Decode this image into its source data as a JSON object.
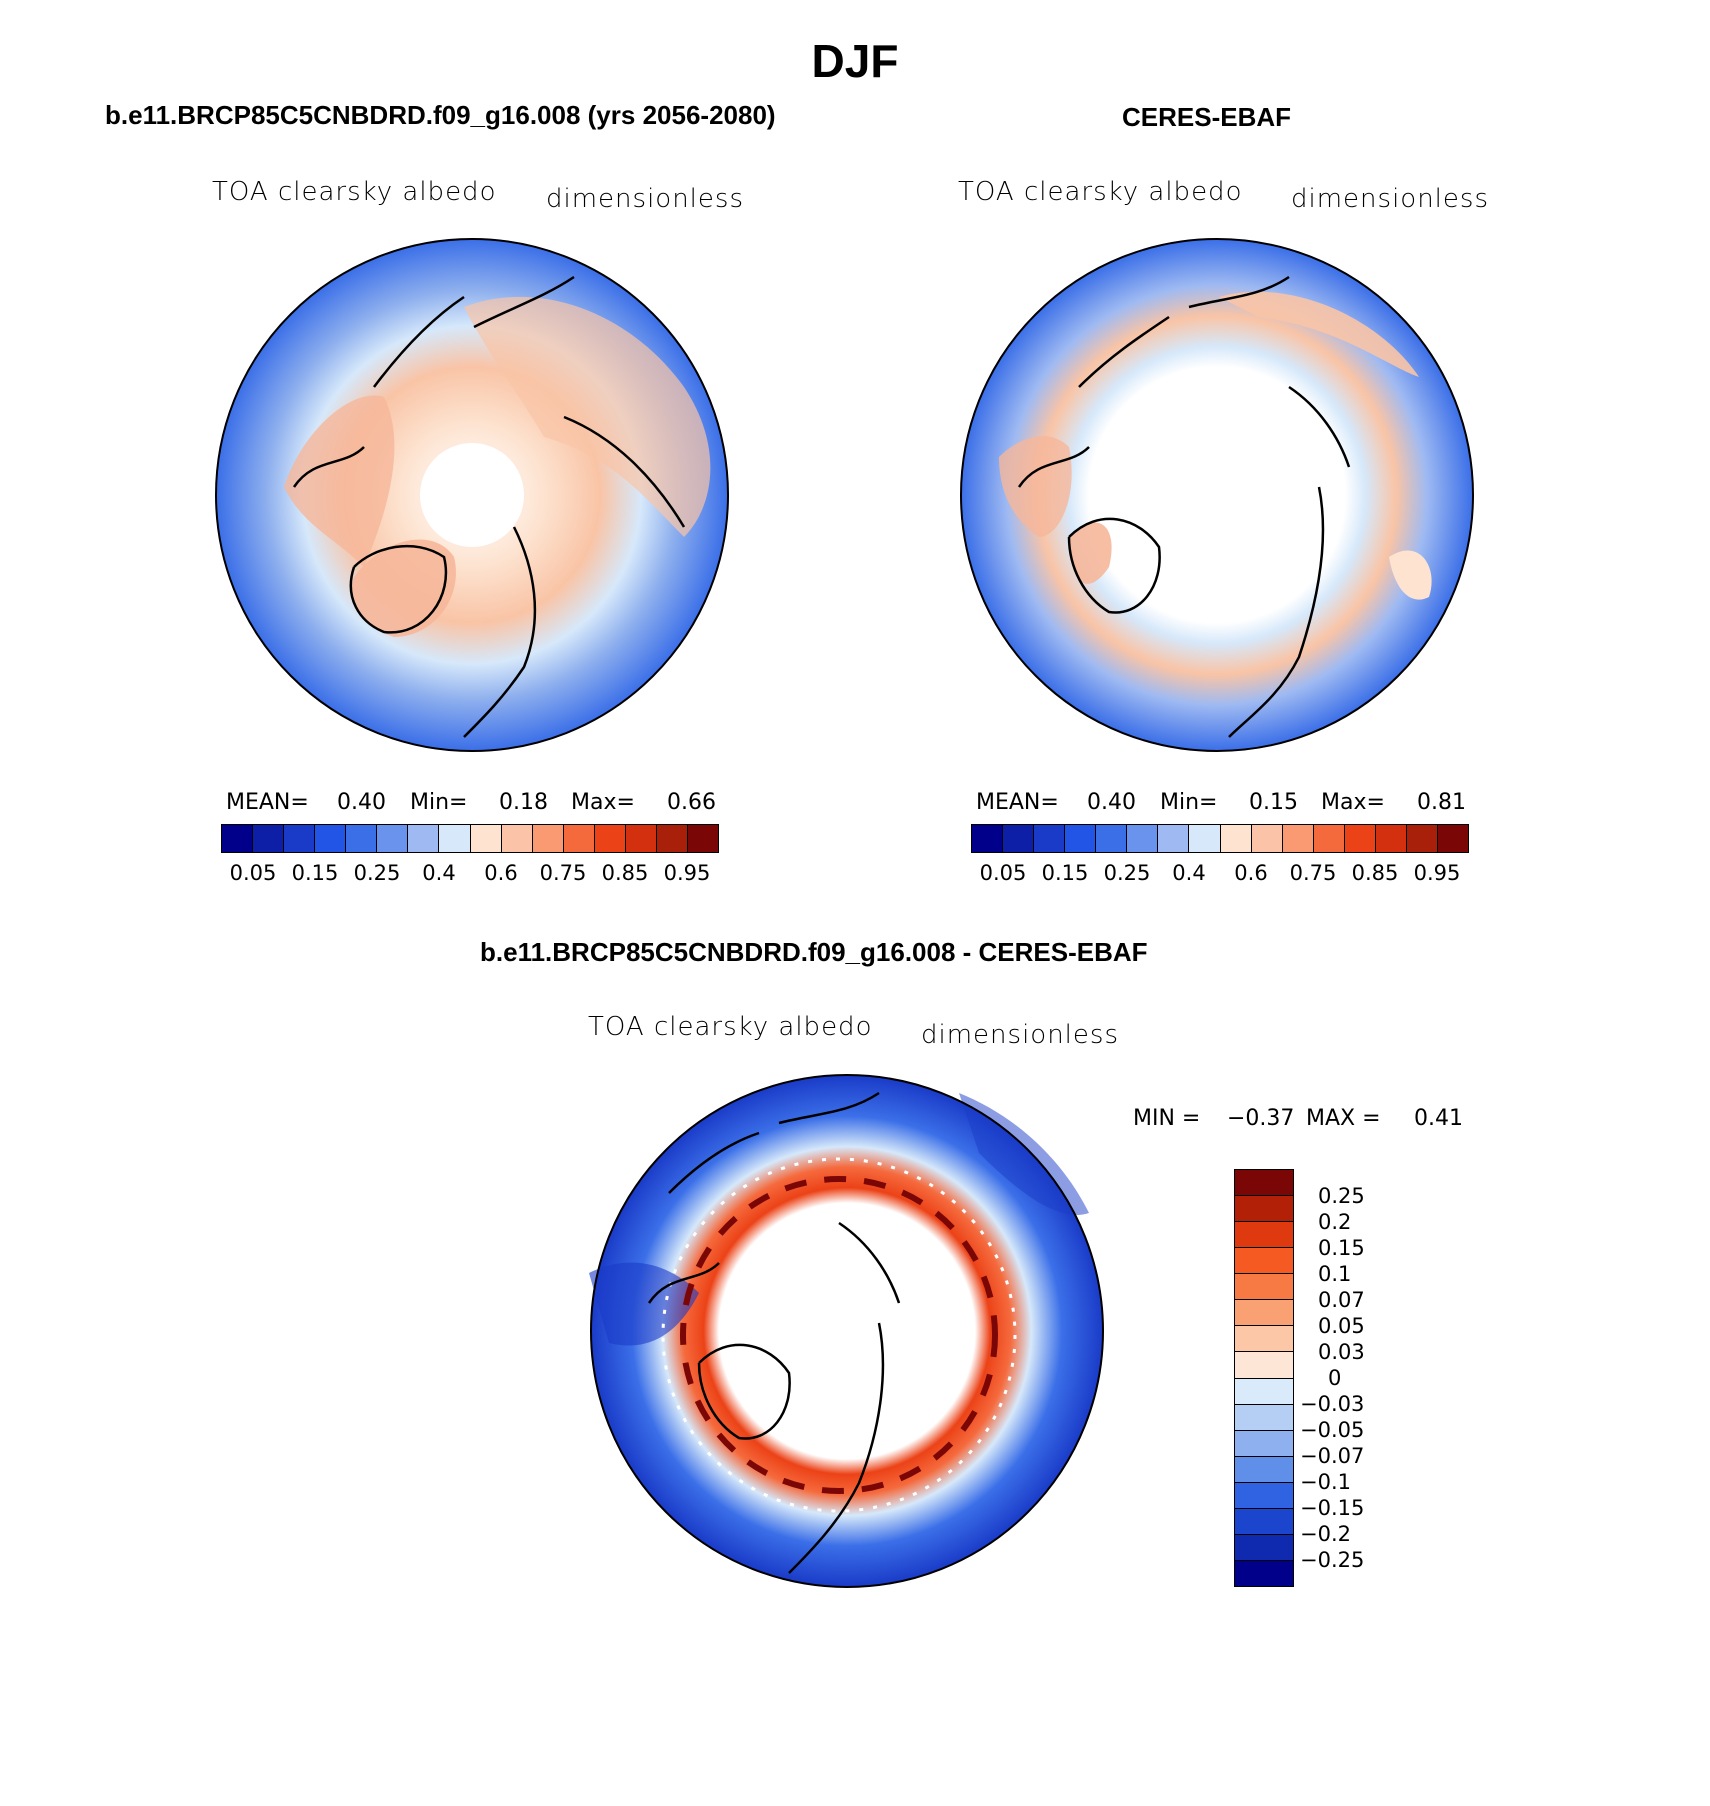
{
  "figure": {
    "season": "DJF",
    "map_type": "north-polar-stereographic",
    "panels": [
      {
        "id": "model",
        "title": "b.e11.BRCP85C5CNBDRD.f09_g16.008 (yrs 2056-2080)",
        "variable": "TOA clearsky albedo",
        "units": "dimensionless",
        "stats": {
          "mean_label": "MEAN=",
          "mean": "0.40",
          "min_label": "Min=",
          "min": "0.18",
          "max_label": "Max=",
          "max": "0.66"
        }
      },
      {
        "id": "obs",
        "title": "CERES-EBAF",
        "variable": "TOA clearsky albedo",
        "units": "dimensionless",
        "stats": {
          "mean_label": "MEAN=",
          "mean": "0.40",
          "min_label": "Min=",
          "min": "0.15",
          "max_label": "Max=",
          "max": "0.81"
        }
      },
      {
        "id": "diff",
        "title": "b.e11.BRCP85C5CNBDRD.f09_g16.008 - CERES-EBAF",
        "variable": "TOA clearsky albedo",
        "units": "dimensionless",
        "stats": {
          "min_label": "MIN =",
          "min": "−0.37",
          "max_label": "MAX =",
          "max": "0.41"
        }
      }
    ]
  },
  "colorbars": {
    "abs": {
      "colors": [
        "#00008b",
        "#0d1fa6",
        "#1a3bc8",
        "#2255e6",
        "#3b6fe8",
        "#6a93ee",
        "#9fbaf2",
        "#d6e8fa",
        "#fde3d0",
        "#fbc3a8",
        "#f99a72",
        "#f56a3d",
        "#ec4217",
        "#d2300e",
        "#a8200a",
        "#7b0606"
      ],
      "tick_labels": [
        "0.05",
        "0.15",
        "0.25",
        "0.4",
        "0.6",
        "0.75",
        "0.85",
        "0.95"
      ],
      "tick_boundaries": [
        1,
        3,
        5,
        7,
        9,
        11,
        13,
        15
      ]
    },
    "diff": {
      "colors_top_to_bottom": [
        "#7b0606",
        "#b32008",
        "#df3a0f",
        "#f55a23",
        "#f77a45",
        "#f9a172",
        "#fbc7a7",
        "#fde6d6",
        "#d9ebfa",
        "#b5cff4",
        "#8fb0ee",
        "#5f8fe8",
        "#2f63e2",
        "#1a45cc",
        "#0f2aae",
        "#00008b"
      ],
      "tick_labels": [
        "0.25",
        "0.2",
        "0.15",
        "0.1",
        "0.07",
        "0.05",
        "0.03",
        "0",
        "−0.03",
        "−0.05",
        "−0.07",
        "−0.1",
        "−0.15",
        "−0.2",
        "−0.25"
      ]
    }
  }
}
